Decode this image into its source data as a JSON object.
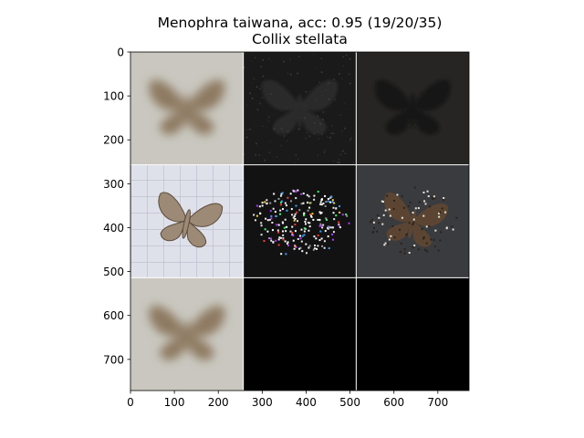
{
  "chart_data": {
    "type": "image-grid",
    "title": "Menophra taiwana, acc: 0.95 (19/20/35)",
    "subtitle": "Collix stellata",
    "xlim": [
      0,
      771
    ],
    "ylim": [
      771,
      0
    ],
    "xticks": [
      0,
      100,
      200,
      300,
      400,
      500,
      600,
      700
    ],
    "yticks": [
      0,
      100,
      200,
      300,
      400,
      500,
      600,
      700
    ],
    "grid": "3x3",
    "cells": [
      {
        "row": 0,
        "col": 0,
        "content": "moth-blurred",
        "bg": "#c9c7bf"
      },
      {
        "row": 0,
        "col": 1,
        "content": "moth-noise-dark",
        "bg": "#1a1a1a"
      },
      {
        "row": 0,
        "col": 2,
        "content": "moth-dim",
        "bg": "#262523"
      },
      {
        "row": 1,
        "col": 0,
        "content": "moth-specimen",
        "bg": "#d8dae3"
      },
      {
        "row": 1,
        "col": 1,
        "content": "moth-sparse-colored",
        "bg": "#121212"
      },
      {
        "row": 1,
        "col": 2,
        "content": "moth-masked",
        "bg": "#3a3b3e"
      },
      {
        "row": 2,
        "col": 0,
        "content": "moth-blurred",
        "bg": "#c9c7bf"
      },
      {
        "row": 2,
        "col": 1,
        "content": "empty",
        "bg": "#000000"
      },
      {
        "row": 2,
        "col": 2,
        "content": "empty",
        "bg": "#000000"
      }
    ]
  }
}
